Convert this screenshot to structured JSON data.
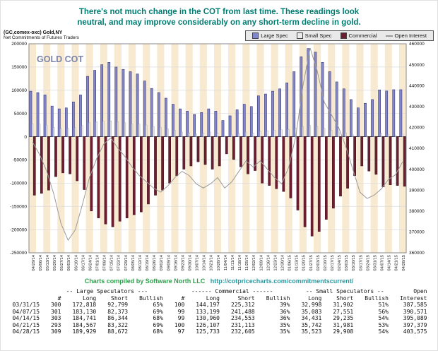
{
  "headline": {
    "line1": "There's not much change in the COT from last time. These readings look",
    "line2": "neutral, and may improve considerably on any short-term decline in gold."
  },
  "chart": {
    "symbol": "(GC,comex-oxc) Gold,NY",
    "subtitle": "Net Commitments of Futures Traders",
    "legend": [
      {
        "label": "Large Spec"
      },
      {
        "label": "Small Spec"
      },
      {
        "label": "Commercial"
      },
      {
        "label": "Open Interest"
      }
    ]
  },
  "chart_data": {
    "type": "bar",
    "title": "GOLD COT",
    "legend_position": "top-right",
    "grid": true,
    "stripe_color": "#f8ead0",
    "left_axis": {
      "min": -250000,
      "max": 200000,
      "tick": 50000
    },
    "right_axis": {
      "min": 360000,
      "max": 460000,
      "tick": 10000
    },
    "x": [
      "04/29/14",
      "05/06/14",
      "05/13/14",
      "05/20/14",
      "05/27/14",
      "06/03/14",
      "06/10/14",
      "06/17/14",
      "06/24/14",
      "07/01/14",
      "07/08/14",
      "07/15/14",
      "07/22/14",
      "07/29/14",
      "08/05/14",
      "08/12/14",
      "08/19/14",
      "08/26/14",
      "09/02/14",
      "09/09/14",
      "09/16/14",
      "09/23/14",
      "09/30/14",
      "10/07/14",
      "10/14/14",
      "10/21/14",
      "10/28/14",
      "11/04/14",
      "11/11/14",
      "11/18/14",
      "11/25/14",
      "12/02/14",
      "12/09/14",
      "12/16/14",
      "12/23/14",
      "12/30/14",
      "01/06/15",
      "01/13/15",
      "01/20/15",
      "01/27/15",
      "02/03/15",
      "02/10/15",
      "02/17/15",
      "02/24/15",
      "03/03/15",
      "03/10/15",
      "03/17/15",
      "03/24/15",
      "03/31/15",
      "04/07/15",
      "04/14/15",
      "04/21/15",
      "04/28/15"
    ],
    "series": [
      {
        "name": "Large Spec",
        "type": "bar",
        "axis": "left",
        "color": "#8486cb",
        "values": [
          98000,
          95000,
          90000,
          66000,
          60000,
          62000,
          75000,
          90000,
          130000,
          143000,
          155000,
          160000,
          150000,
          145000,
          140000,
          135000,
          120000,
          104000,
          95000,
          83000,
          70000,
          60000,
          55000,
          48000,
          52000,
          60000,
          55000,
          35000,
          45000,
          58000,
          70000,
          65000,
          88000,
          92000,
          98000,
          103000,
          116000,
          140000,
          172000,
          190000,
          182000,
          160000,
          140000,
          118000,
          103000,
          80000,
          62000,
          72000,
          80019,
          100757,
          98397,
          101245,
          101257
        ]
      },
      {
        "name": "Small Spec",
        "type": "bar",
        "axis": "left",
        "color": "#ececec",
        "values": [
          28000,
          27000,
          25000,
          20000,
          18000,
          18000,
          20000,
          24000,
          30000,
          32000,
          33000,
          34000,
          32000,
          30000,
          28000,
          27000,
          25000,
          22000,
          20000,
          17000,
          14000,
          10000,
          8000,
          6000,
          8000,
          10000,
          8000,
          2000,
          4000,
          7000,
          10000,
          8000,
          12000,
          13000,
          14000,
          15000,
          16000,
          18000,
          22000,
          24000,
          22000,
          18000,
          14000,
          10000,
          8000,
          4000,
          1000,
          2000,
          1096,
          7532,
          5196,
          3761,
          5615
        ]
      },
      {
        "name": "Commercial",
        "type": "bar",
        "axis": "left",
        "color": "#6e1e30",
        "values": [
          -126000,
          -122000,
          -115000,
          -86000,
          -78000,
          -80000,
          -95000,
          -114000,
          -160000,
          -175000,
          -188000,
          -194000,
          -182000,
          -175000,
          -168000,
          -162000,
          -145000,
          -126000,
          -115000,
          -100000,
          -84000,
          -70000,
          -63000,
          -54000,
          -60000,
          -70000,
          -63000,
          -37000,
          -49000,
          -65000,
          -80000,
          -73000,
          -100000,
          -105000,
          -112000,
          -118000,
          -132000,
          -158000,
          -194000,
          -214000,
          -204000,
          -178000,
          -154000,
          -128000,
          -111000,
          -84000,
          -63000,
          -74000,
          -81115,
          -108289,
          -103593,
          -105006,
          -106872
        ]
      },
      {
        "name": "Open Interest",
        "type": "line",
        "axis": "right",
        "color": "#9a9a9a",
        "values": [
          413000,
          407000,
          399000,
          388000,
          374000,
          366000,
          371000,
          383000,
          396000,
          405000,
          412000,
          415000,
          410000,
          406000,
          401000,
          397000,
          394000,
          391000,
          389000,
          392000,
          396000,
          399000,
          397000,
          393000,
          391000,
          393000,
          396000,
          391000,
          394000,
          399000,
          404000,
          401000,
          404000,
          400000,
          396000,
          393000,
          401000,
          416000,
          440000,
          458000,
          447000,
          432000,
          426000,
          420000,
          411000,
          400000,
          389000,
          386000,
          387585,
          390571,
          395089,
          397379,
          403575
        ]
      }
    ]
  },
  "attribution": {
    "text": "Charts compiled by Software North LLC",
    "url": "http://cotpricecharts.com/commitmentscurrent/"
  },
  "table": {
    "group_headers": [
      "-- Large Speculators ---",
      "------ Commercial ------",
      "-- Small Speculators --",
      "Open"
    ],
    "col_headers": [
      "",
      "#",
      "Long",
      "Short",
      "Bullish",
      "#",
      "Long",
      "Short",
      "Bullish",
      "Long",
      "Short",
      "Bullish",
      "Interest"
    ],
    "rows": [
      [
        "03/31/15",
        "300",
        "172,818",
        "92,799",
        "65%",
        "100",
        "144,197",
        "225,312",
        "39%",
        "32,998",
        "31,902",
        "51%",
        "387,585"
      ],
      [
        "04/07/15",
        "301",
        "183,130",
        "82,373",
        "69%",
        "99",
        "133,199",
        "241,488",
        "36%",
        "35,083",
        "27,551",
        "56%",
        "390,571"
      ],
      [
        "04/14/15",
        "303",
        "184,741",
        "86,344",
        "68%",
        "99",
        "130,960",
        "234,553",
        "36%",
        "34,431",
        "29,235",
        "54%",
        "395,089"
      ],
      [
        "04/21/15",
        "293",
        "184,567",
        "83,322",
        "69%",
        "100",
        "126,107",
        "231,113",
        "35%",
        "35,742",
        "31,981",
        "53%",
        "397,379"
      ],
      [
        "04/28/15",
        "309",
        "189,929",
        "88,672",
        "68%",
        "97",
        "125,733",
        "232,605",
        "35%",
        "35,523",
        "29,908",
        "54%",
        "403,575"
      ]
    ]
  }
}
